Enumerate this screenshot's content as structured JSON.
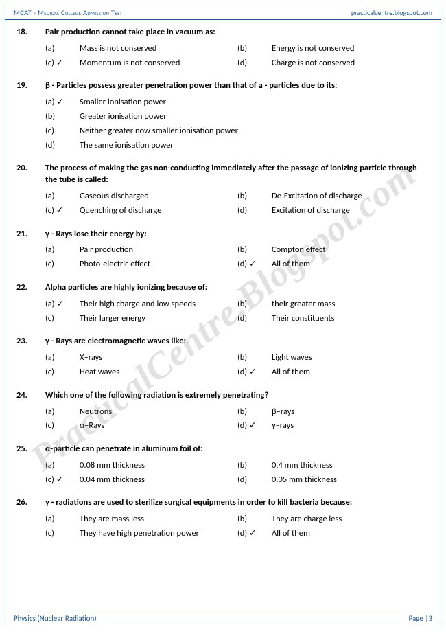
{
  "header": {
    "left": "MCAT - Medical College Admission Test",
    "right": "practicalcentre.blogspot.com"
  },
  "watermark": "PracticalCentre.Blogspot.com",
  "footer": {
    "left": "Physics (Nuclear Radiation)",
    "right_prefix": "Page |",
    "page_num": "3"
  },
  "questions": [
    {
      "num": "18.",
      "text": "Pair production cannot take place in vacuum as:",
      "layout": "two-col",
      "options": [
        {
          "label": "(a)",
          "text": "Mass is not conserved",
          "correct": false
        },
        {
          "label": "(b)",
          "text": "Energy is not conserved",
          "correct": false
        },
        {
          "label": "(c)",
          "text": "Momentum is not conserved",
          "correct": true
        },
        {
          "label": "(d)",
          "text": "Charge is not conserved",
          "correct": false
        }
      ]
    },
    {
      "num": "19.",
      "text": "β - Particles possess greater penetration power than that of a - particles due to its:",
      "layout": "one-col",
      "options": [
        {
          "label": "(a)",
          "text": "Smaller ionisation power",
          "correct": true
        },
        {
          "label": "(b)",
          "text": "Greater ionisation power",
          "correct": false
        },
        {
          "label": "(c)",
          "text": "Neither greater now smaller ionisation power",
          "correct": false
        },
        {
          "label": "(d)",
          "text": "The same ionisation power",
          "correct": false
        }
      ]
    },
    {
      "num": "20.",
      "text": "The process of making the gas non-conducting immediately after the passage of ionizing particle through the tube is called:",
      "layout": "two-col",
      "options": [
        {
          "label": "(a)",
          "text": "Gaseous discharged",
          "correct": false
        },
        {
          "label": "(b)",
          "text": "De-Excitation of discharge",
          "correct": false
        },
        {
          "label": "(c)",
          "text": "Quenching of discharge",
          "correct": true
        },
        {
          "label": "(d)",
          "text": "Excitation of discharge",
          "correct": false
        }
      ]
    },
    {
      "num": "21.",
      "text": "γ - Rays lose their energy by:",
      "layout": "two-col",
      "options": [
        {
          "label": "(a)",
          "text": "Pair production",
          "correct": false
        },
        {
          "label": "(b)",
          "text": "Compton effect",
          "correct": false
        },
        {
          "label": "(c)",
          "text": "Photo-electric effect",
          "correct": false
        },
        {
          "label": "(d)",
          "text": "All of them",
          "correct": true
        }
      ]
    },
    {
      "num": "22.",
      "text": "Alpha particles are highly ionizing because of:",
      "layout": "two-col",
      "options": [
        {
          "label": "(a)",
          "text": "Their high charge and low speeds",
          "correct": true
        },
        {
          "label": "(b)",
          "text": "their greater mass",
          "correct": false
        },
        {
          "label": "(c)",
          "text": "Their larger energy",
          "correct": false
        },
        {
          "label": "(d)",
          "text": "Their constituents",
          "correct": false
        }
      ]
    },
    {
      "num": "23.",
      "text": "γ - Rays are electromagnetic waves like:",
      "layout": "two-col",
      "options": [
        {
          "label": "(a)",
          "text": "X–rays",
          "correct": false
        },
        {
          "label": "(b)",
          "text": "Light waves",
          "correct": false
        },
        {
          "label": "(c)",
          "text": "Heat waves",
          "correct": false
        },
        {
          "label": "(d)",
          "text": "All of them",
          "correct": true
        }
      ]
    },
    {
      "num": "24.",
      "text": "Which one of the following radiation is extremely penetrating?",
      "layout": "two-col",
      "options": [
        {
          "label": "(a)",
          "text": "Neutrons",
          "correct": false
        },
        {
          "label": "(b)",
          "text": "β–rays",
          "correct": false
        },
        {
          "label": "(c)",
          "text": "α–Rays",
          "correct": false
        },
        {
          "label": "(d)",
          "text": "γ–rays",
          "correct": true
        }
      ]
    },
    {
      "num": "25.",
      "text": "α-particle can penetrate in aluminum foil of:",
      "layout": "two-col",
      "options": [
        {
          "label": "(a)",
          "text": "0.08 mm thickness",
          "correct": false
        },
        {
          "label": "(b)",
          "text": "0.4 mm thickness",
          "correct": false
        },
        {
          "label": "(c)",
          "text": "0.04 mm thickness",
          "correct": true
        },
        {
          "label": "(d)",
          "text": "0.05 mm thickness",
          "correct": false
        }
      ]
    },
    {
      "num": "26.",
      "text": "γ - radiations are used to sterilize surgical equipments in order to kill bacteria because:",
      "layout": "two-col",
      "options": [
        {
          "label": "(a)",
          "text": "They are mass less",
          "correct": false
        },
        {
          "label": "(b)",
          "text": "They are charge less",
          "correct": false
        },
        {
          "label": "(c)",
          "text": "They have high penetration power",
          "correct": false
        },
        {
          "label": "(d)",
          "text": "All of them",
          "correct": true
        }
      ]
    }
  ]
}
